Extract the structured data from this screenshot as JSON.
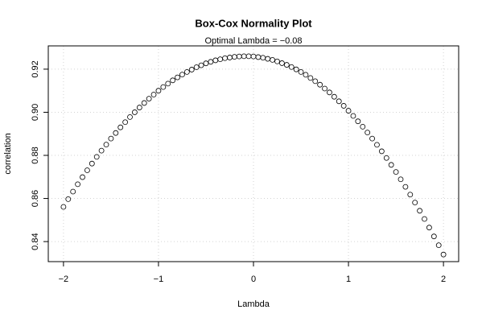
{
  "chart_data": {
    "type": "scatter",
    "title": "Box-Cox Normality Plot",
    "subtitle": "Optimal Lambda = −0.08",
    "x_label": "Lambda",
    "y_label": "correlation",
    "xlim": [
      -2.16,
      2.16
    ],
    "ylim": [
      0.8307,
      0.9308
    ],
    "xticks": [
      {
        "value": -2,
        "label": "−2"
      },
      {
        "value": -1,
        "label": "−1"
      },
      0,
      1,
      2
    ],
    "yticks": [
      0.84,
      0.86,
      0.88,
      {
        "value": 0.9,
        "label": "0.90"
      },
      0.92
    ],
    "grid": true,
    "color": "#000000",
    "x": [
      -2,
      -1.95,
      -1.9,
      -1.85,
      -1.8,
      -1.75,
      -1.7,
      -1.65,
      -1.6,
      -1.55,
      -1.5,
      -1.45,
      -1.4,
      -1.35,
      -1.3,
      -1.25,
      -1.2,
      -1.15,
      -1.1,
      -1.05,
      -1,
      -0.95,
      -0.9,
      -0.85,
      -0.8,
      -0.75,
      -0.7,
      -0.65,
      -0.6,
      -0.55,
      -0.5,
      -0.45,
      -0.4,
      -0.35,
      -0.3,
      -0.25,
      -0.2,
      -0.15,
      -0.1,
      -0.05,
      0,
      0.05,
      0.1,
      0.15,
      0.2,
      0.25,
      0.3,
      0.35,
      0.4,
      0.45,
      0.5,
      0.55,
      0.6,
      0.65,
      0.7,
      0.75,
      0.8,
      0.85,
      0.9,
      0.95,
      1,
      1.05,
      1.1,
      1.15,
      1.2,
      1.25,
      1.3,
      1.35,
      1.4,
      1.45,
      1.5,
      1.55,
      1.6,
      1.65,
      1.7,
      1.75,
      1.8,
      1.85,
      1.9,
      1.95,
      2
    ],
    "values": [
      0.8561,
      0.8597,
      0.8632,
      0.8666,
      0.8699,
      0.8731,
      0.8762,
      0.8793,
      0.8822,
      0.885,
      0.8878,
      0.8904,
      0.893,
      0.8954,
      0.8978,
      0.9,
      0.9022,
      0.9043,
      0.9063,
      0.9082,
      0.91,
      0.9117,
      0.9133,
      0.9148,
      0.9162,
      0.9175,
      0.9187,
      0.9198,
      0.9209,
      0.9218,
      0.9227,
      0.9234,
      0.9241,
      0.9246,
      0.9251,
      0.9254,
      0.9257,
      0.9259,
      0.926,
      0.926,
      0.9259,
      0.9256,
      0.9253,
      0.9248,
      0.9243,
      0.9236,
      0.9228,
      0.922,
      0.921,
      0.9199,
      0.9187,
      0.9174,
      0.9159,
      0.9144,
      0.9128,
      0.911,
      0.9092,
      0.9072,
      0.9051,
      0.903,
      0.9007,
      0.8983,
      0.8958,
      0.8933,
      0.8906,
      0.8878,
      0.8849,
      0.8819,
      0.8788,
      0.8756,
      0.8723,
      0.8689,
      0.8654,
      0.8618,
      0.8581,
      0.8543,
      0.8505,
      0.8465,
      0.8424,
      0.8383,
      0.834
    ]
  }
}
